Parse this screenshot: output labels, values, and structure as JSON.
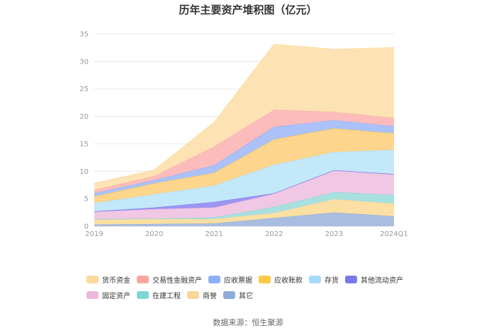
{
  "chart_data": {
    "type": "area",
    "stacked": true,
    "title": "历年主要资产堆积图（亿元）",
    "categories": [
      "2019",
      "2020",
      "2021",
      "2022",
      "2023",
      "2024Q1"
    ],
    "ylim": [
      0,
      35
    ],
    "yticks": [
      0,
      5,
      10,
      15,
      20,
      25,
      30,
      35
    ],
    "grid": true,
    "legend_position": "bottom",
    "series": [
      {
        "name": "其它",
        "color": "#a9bde0",
        "values": [
          0.3,
          0.4,
          0.5,
          1.5,
          2.5,
          1.8
        ]
      },
      {
        "name": "商誉",
        "color": "#fcdfa2",
        "values": [
          0.9,
          0.9,
          0.8,
          0.9,
          2.4,
          2.3
        ]
      },
      {
        "name": "在建工程",
        "color": "#a8e0e0",
        "values": [
          0.1,
          0.1,
          0.3,
          1.1,
          1.3,
          1.6
        ]
      },
      {
        "name": "固定资产",
        "color": "#f0c8e4",
        "values": [
          1.3,
          1.7,
          1.8,
          2.4,
          3.9,
          3.7
        ]
      },
      {
        "name": "其他流动资产",
        "color": "#9d96f0",
        "values": [
          0.1,
          0.3,
          1.0,
          0.1,
          0.1,
          0.1
        ]
      },
      {
        "name": "存货",
        "color": "#c3e8fa",
        "values": [
          1.5,
          2.4,
          3.0,
          5.2,
          3.3,
          4.4
        ]
      },
      {
        "name": "应收账款",
        "color": "#fdd58c",
        "values": [
          1.2,
          2.0,
          2.3,
          4.6,
          4.3,
          3.0
        ]
      },
      {
        "name": "应收票据",
        "color": "#abc1f7",
        "values": [
          0.6,
          0.6,
          1.4,
          2.3,
          1.5,
          1.3
        ]
      },
      {
        "name": "交易性金融资产",
        "color": "#fcbcbc",
        "values": [
          0.6,
          0.7,
          3.4,
          3.1,
          1.5,
          1.5
        ]
      },
      {
        "name": "货币资金",
        "color": "#fde3b4",
        "values": [
          1.2,
          1.1,
          4.4,
          11.9,
          11.4,
          12.8
        ]
      }
    ],
    "legend_order": [
      "货币资金",
      "交易性金融资产",
      "应收票据",
      "应收账款",
      "存货",
      "其他流动资产",
      "固定资产",
      "在建工程",
      "商誉",
      "其它"
    ]
  },
  "legend_colors": {
    "货币资金": "#fdd99a",
    "交易性金融资产": "#fba79d",
    "应收票据": "#8fb0f5",
    "应收账款": "#fdc845",
    "存货": "#a6dbf8",
    "其他流动资产": "#7a78ec",
    "固定资产": "#eab7dd",
    "在建工程": "#7fd6d6",
    "商誉": "#fcd59a",
    "其它": "#8eacda"
  },
  "source": "数据来源：恒生聚源"
}
